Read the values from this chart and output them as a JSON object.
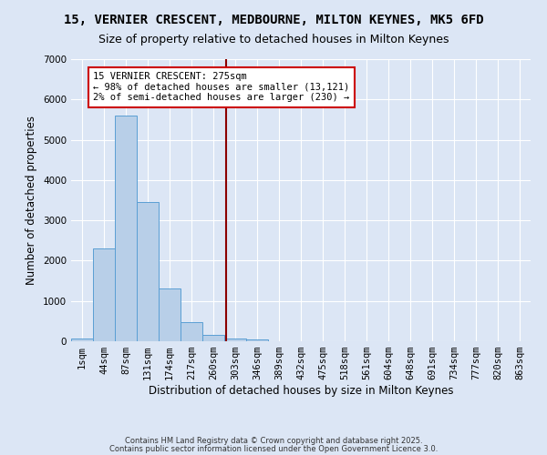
{
  "title": "15, VERNIER CRESCENT, MEDBOURNE, MILTON KEYNES, MK5 6FD",
  "subtitle": "Size of property relative to detached houses in Milton Keynes",
  "xlabel": "Distribution of detached houses by size in Milton Keynes",
  "ylabel": "Number of detached properties",
  "categories": [
    "1sqm",
    "44sqm",
    "87sqm",
    "131sqm",
    "174sqm",
    "217sqm",
    "260sqm",
    "303sqm",
    "346sqm",
    "389sqm",
    "432sqm",
    "475sqm",
    "518sqm",
    "561sqm",
    "604sqm",
    "648sqm",
    "691sqm",
    "734sqm",
    "777sqm",
    "820sqm",
    "863sqm"
  ],
  "values": [
    75,
    2300,
    5600,
    3450,
    1320,
    475,
    155,
    75,
    40,
    0,
    0,
    0,
    0,
    0,
    0,
    0,
    0,
    0,
    0,
    0,
    0
  ],
  "bar_color": "#b8cfe8",
  "bar_edge_color": "#5a9fd4",
  "bar_width": 1.0,
  "ylim": [
    0,
    7000
  ],
  "yticks": [
    0,
    1000,
    2000,
    3000,
    4000,
    5000,
    6000,
    7000
  ],
  "vline_x": 6.57,
  "vline_color": "#8b0000",
  "annotation_text": "15 VERNIER CRESCENT: 275sqm\n← 98% of detached houses are smaller (13,121)\n2% of semi-detached houses are larger (230) →",
  "annotation_box_color": "#ffffff",
  "annotation_box_edge_color": "#cc0000",
  "background_color": "#dce6f5",
  "grid_color": "#ffffff",
  "footer_line1": "Contains HM Land Registry data © Crown copyright and database right 2025.",
  "footer_line2": "Contains public sector information licensed under the Open Government Licence 3.0.",
  "title_fontsize": 10,
  "subtitle_fontsize": 9,
  "xlabel_fontsize": 8.5,
  "ylabel_fontsize": 8.5,
  "tick_fontsize": 7.5,
  "annotation_fontsize": 7.5,
  "footer_fontsize": 6
}
